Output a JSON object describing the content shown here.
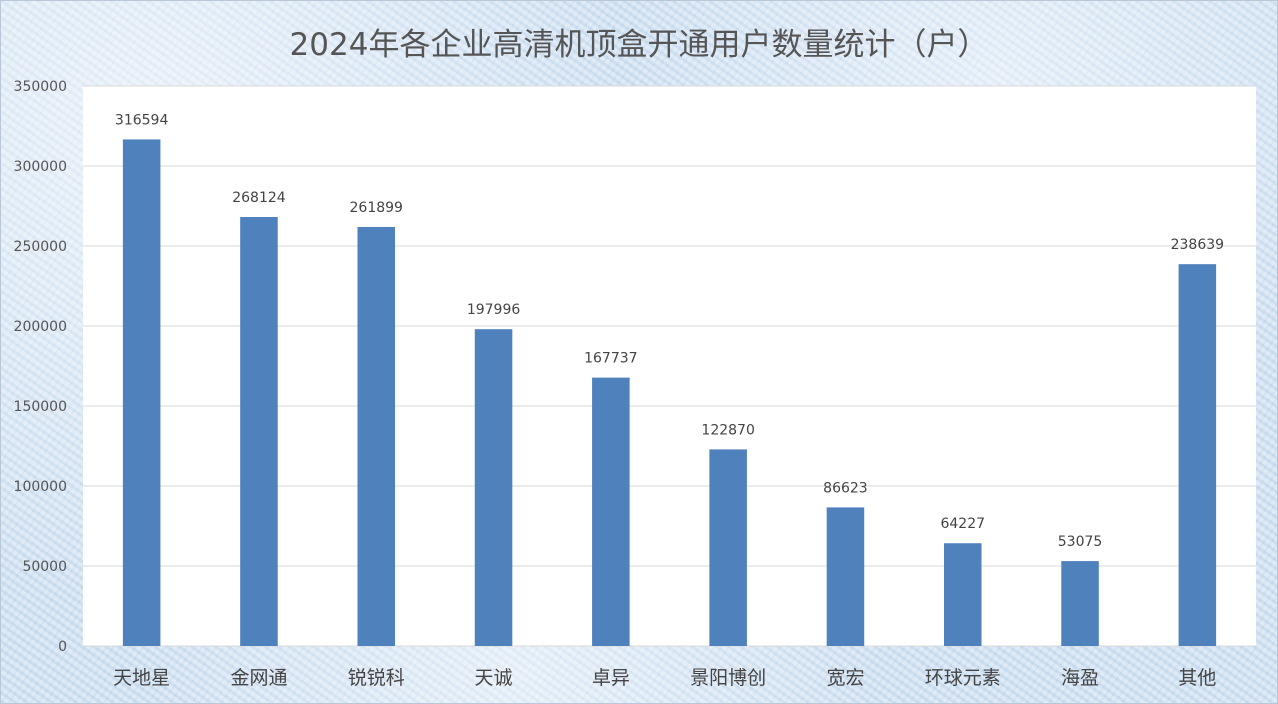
{
  "chart_data": {
    "type": "bar",
    "title": "2024年各企业高清机顶盒开通用户数量统计（户）",
    "categories": [
      "天地星",
      "金网通",
      "锐锐科",
      "天诚",
      "卓异",
      "景阳博创",
      "宽宏",
      "环球元素",
      "海盈",
      "其他"
    ],
    "values": [
      316594,
      268124,
      261899,
      197996,
      167737,
      122870,
      86623,
      64227,
      53075,
      238639
    ],
    "data_labels": [
      "316594",
      "268124",
      "261899",
      "197996",
      "167737",
      "122870",
      "86623",
      "64227",
      "53075",
      "238639"
    ],
    "ylim": [
      0,
      350000
    ],
    "yticks": [
      0,
      50000,
      100000,
      150000,
      200000,
      250000,
      300000,
      350000
    ],
    "ytick_labels": [
      "0",
      "50000",
      "100000",
      "150000",
      "200000",
      "250000",
      "300000",
      "350000"
    ],
    "xlabel": "",
    "ylabel": "",
    "grid": true,
    "legend": "none",
    "colors": {
      "bar": "#4f81bd",
      "grid": "#d9d9d9",
      "plot_bg": "#ffffff"
    }
  }
}
